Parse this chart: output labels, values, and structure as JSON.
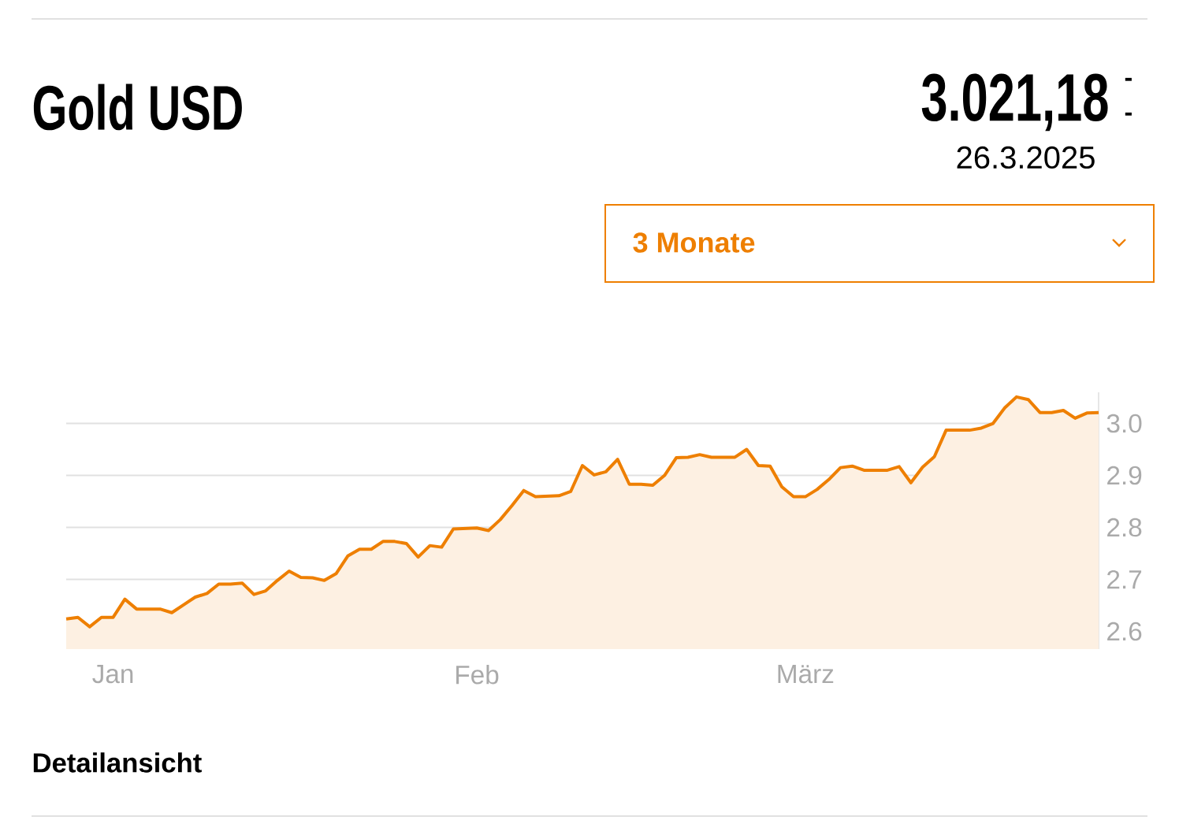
{
  "chart_data": {
    "type": "area",
    "title": "Gold USD",
    "subtitle": "3.021,18",
    "annotations": [
      "-",
      "-",
      "26.3.2025",
      "3 Monate",
      "Detailansicht"
    ],
    "x": [
      "2024-12-28",
      "2024-12-29",
      "2024-12-30",
      "2024-12-31",
      "2025-01-01",
      "2025-01-02",
      "2025-01-03",
      "2025-01-05",
      "2025-01-06",
      "2025-01-07",
      "2025-01-08",
      "2025-01-09",
      "2025-01-10",
      "2025-01-11",
      "2025-01-12",
      "2025-01-13",
      "2025-01-14",
      "2025-01-15",
      "2025-01-16",
      "2025-01-17",
      "2025-01-18",
      "2025-01-19",
      "2025-01-20",
      "2025-01-21",
      "2025-01-22",
      "2025-01-23",
      "2025-01-24",
      "2025-01-25",
      "2025-01-26",
      "2025-01-27",
      "2025-01-28",
      "2025-01-29",
      "2025-01-30",
      "2025-02-01",
      "2025-02-02",
      "2025-02-03",
      "2025-02-04",
      "2025-02-05",
      "2025-02-06",
      "2025-02-08",
      "2025-02-09",
      "2025-02-10",
      "2025-02-11",
      "2025-02-12",
      "2025-02-13",
      "2025-02-14",
      "2025-02-15",
      "2025-02-16",
      "2025-02-17",
      "2025-02-18",
      "2025-02-19",
      "2025-02-20",
      "2025-02-21",
      "2025-02-23",
      "2025-02-24",
      "2025-02-25",
      "2025-02-26",
      "2025-02-27",
      "2025-02-28",
      "2025-03-01",
      "2025-03-02",
      "2025-03-03",
      "2025-03-04",
      "2025-03-05",
      "2025-03-06",
      "2025-03-08",
      "2025-03-09",
      "2025-03-10",
      "2025-03-11",
      "2025-03-12",
      "2025-03-13",
      "2025-03-15",
      "2025-03-16",
      "2025-03-17",
      "2025-03-18",
      "2025-03-19",
      "2025-03-20",
      "2025-03-21",
      "2025-03-22",
      "2025-03-23",
      "2025-03-24",
      "2025-03-25",
      "2025-03-26"
    ],
    "series": [
      {
        "color": "#ee7f00",
        "values": [
          2.624,
          2.627,
          2.609,
          2.627,
          2.627,
          2.662,
          2.643,
          2.643,
          2.636,
          2.651,
          2.666,
          2.673,
          2.691,
          2.691,
          2.693,
          2.671,
          2.678,
          2.698,
          2.716,
          2.704,
          2.703,
          2.698,
          2.711,
          2.745,
          2.758,
          2.758,
          2.773,
          2.773,
          2.769,
          2.743,
          2.765,
          2.762,
          2.797,
          2.799,
          2.794,
          2.815,
          2.842,
          2.871,
          2.859,
          2.861,
          2.869,
          2.919,
          2.901,
          2.907,
          2.931,
          2.883,
          2.883,
          2.881,
          2.9,
          2.934,
          2.935,
          2.94,
          2.935,
          2.935,
          2.95,
          2.919,
          2.918,
          2.878,
          2.859,
          2.859,
          2.873,
          2.892,
          2.915,
          2.918,
          2.91,
          2.91,
          2.917,
          2.886,
          2.916,
          2.936,
          2.987,
          2.987,
          2.991,
          3.0,
          3.03,
          3.051,
          3.046,
          3.021,
          3.021,
          3.025,
          3.01,
          3.02,
          3.021
        ]
      }
    ],
    "xlim": [
      "2024-12-28",
      "2025-03-26"
    ],
    "xticks": [
      {
        "value": "2025-01-01",
        "label": "Jan"
      },
      {
        "value": "2025-02-01",
        "label": "Feb"
      },
      {
        "value": "2025-03-01",
        "label": "März"
      }
    ],
    "ylim": [
      2.566,
      3.06
    ],
    "yticks": [
      {
        "value": 2.6,
        "label": "2.6"
      },
      {
        "value": 2.7,
        "label": "2.7"
      },
      {
        "value": 2.8,
        "label": "2.8"
      },
      {
        "value": 2.9,
        "label": "2.9"
      },
      {
        "value": 3.0,
        "label": "3.0"
      }
    ],
    "grid": "y"
  }
}
